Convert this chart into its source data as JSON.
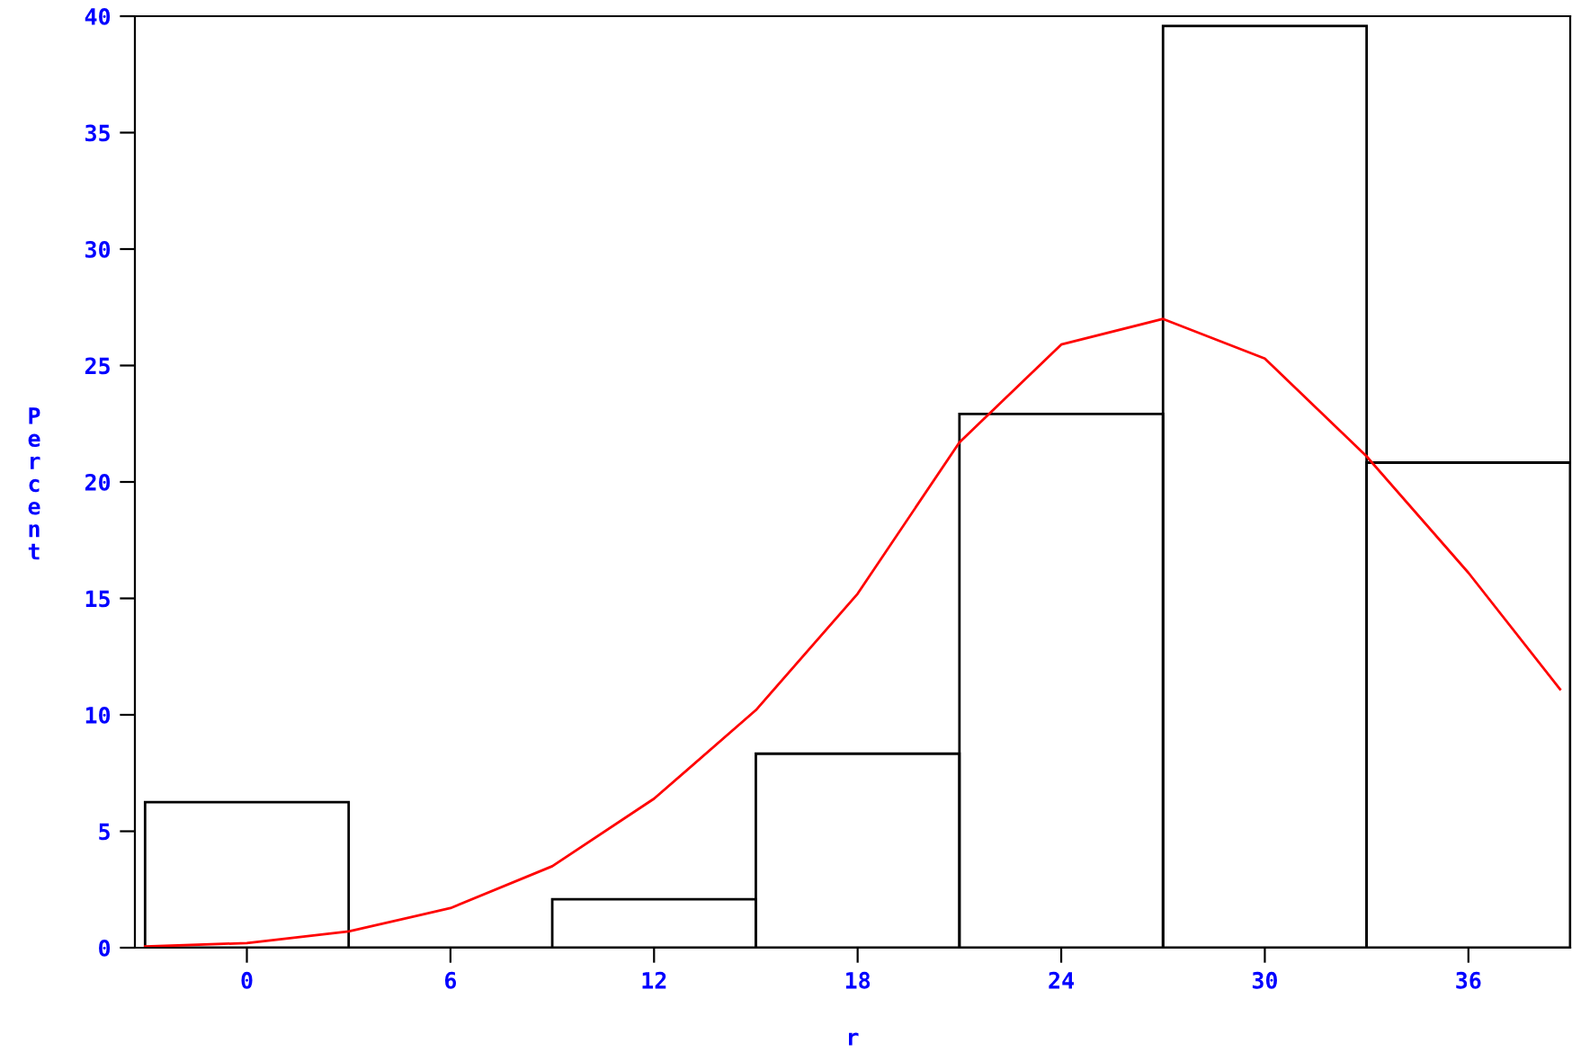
{
  "chart_data": {
    "type": "histogram",
    "xlabel": "r",
    "ylabel": "Percent",
    "bins": [
      -3,
      3,
      9,
      15,
      21,
      27,
      33,
      39
    ],
    "values": [
      6.25,
      0,
      2.08,
      8.33,
      22.92,
      39.58,
      20.83
    ],
    "color": "#000000",
    "series": [
      {
        "type": "line",
        "color": "#ff0000",
        "x": [
          -3,
          0,
          3,
          6,
          9,
          12,
          15,
          18,
          21,
          24,
          27,
          30,
          33,
          36,
          38.7
        ],
        "values": [
          0.05,
          0.2,
          0.7,
          1.7,
          3.5,
          6.4,
          10.2,
          15.2,
          21.7,
          25.9,
          27.0,
          25.3,
          21.1,
          16.1,
          11.1
        ]
      }
    ],
    "xlim": [
      -3.3,
      39
    ],
    "ylim": [
      0,
      40
    ],
    "xticks": [
      0,
      6,
      12,
      18,
      24,
      30,
      36
    ],
    "yticks": [
      0,
      5,
      10,
      15,
      20,
      25,
      30,
      35,
      40
    ],
    "grid": false,
    "legend": false
  }
}
